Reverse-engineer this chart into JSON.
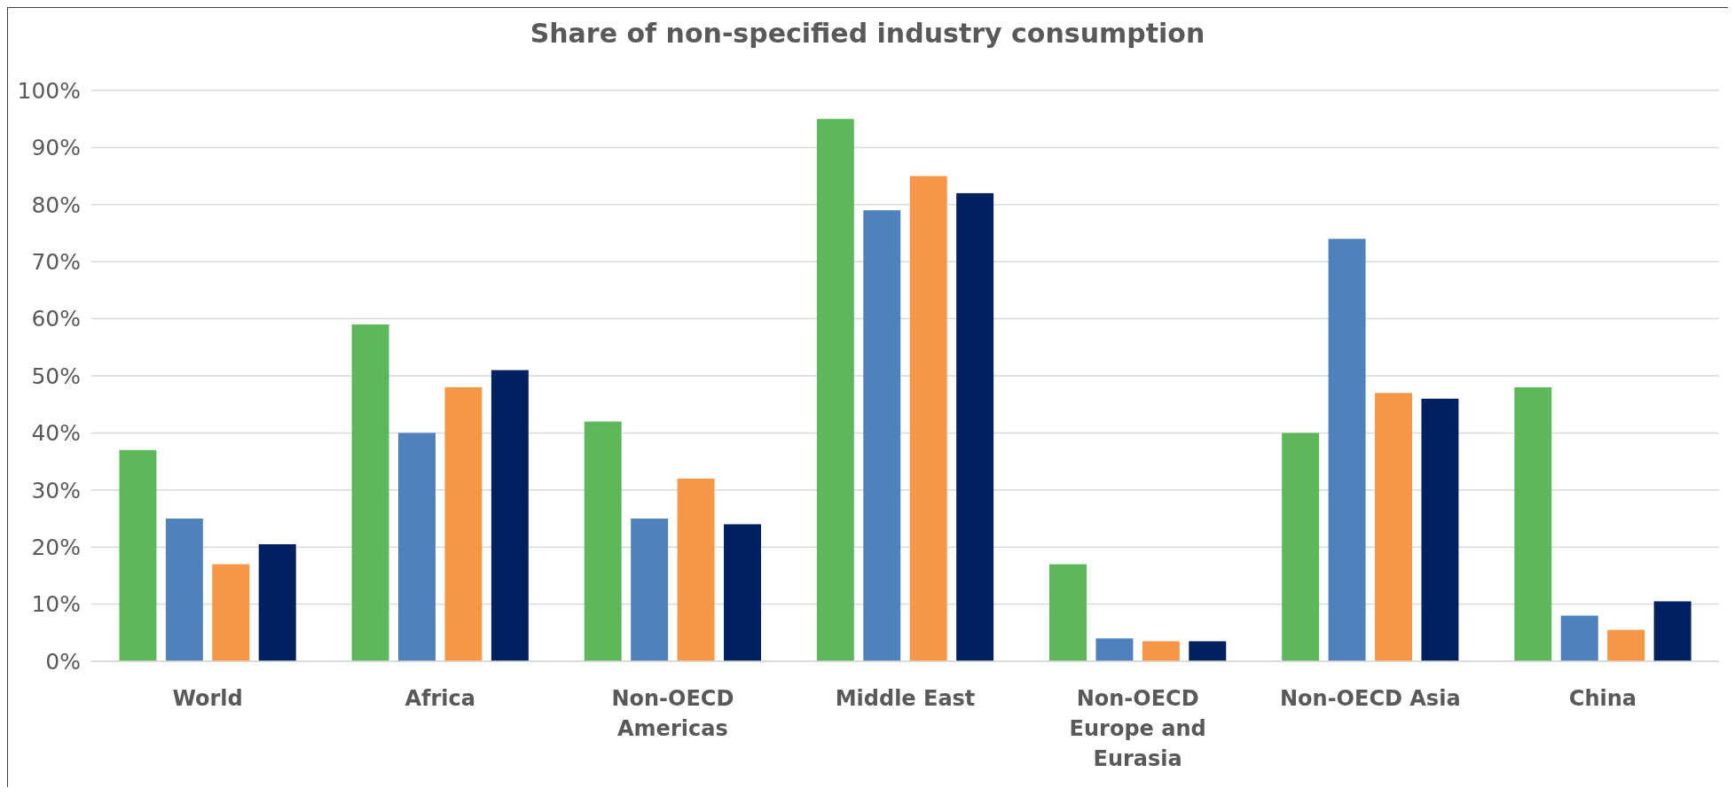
{
  "chart_data": {
    "type": "bar",
    "title": "Share of non-specified industry consumption",
    "categories": [
      "World",
      "Africa",
      "Non-OECD Americas",
      "Middle East",
      "Non-OECD Europe and Eurasia",
      "Non-OECD Asia",
      "China"
    ],
    "series": [
      {
        "color": "#5cb85a",
        "values": [
          37,
          59,
          42,
          95,
          17,
          40,
          48
        ]
      },
      {
        "color": "#4f81bd",
        "values": [
          25,
          40,
          25,
          79,
          4,
          74,
          8
        ]
      },
      {
        "color": "#f79646",
        "values": [
          17,
          48,
          32,
          85,
          3.5,
          47,
          5.5
        ]
      },
      {
        "color": "#002060",
        "values": [
          20.5,
          51,
          24,
          82,
          3.5,
          46,
          10.5
        ]
      }
    ],
    "ylim": [
      0,
      100
    ],
    "yticks": [
      {
        "value": 0,
        "label": "0%"
      },
      {
        "value": 10,
        "label": "10%"
      },
      {
        "value": 20,
        "label": "20%"
      },
      {
        "value": 30,
        "label": "30%"
      },
      {
        "value": 40,
        "label": "40%"
      },
      {
        "value": 50,
        "label": "50%"
      },
      {
        "value": 60,
        "label": "60%"
      },
      {
        "value": 70,
        "label": "70%"
      },
      {
        "value": 80,
        "label": "80%"
      },
      {
        "value": 90,
        "label": "90%"
      },
      {
        "value": 100,
        "label": "100%"
      }
    ],
    "grid": "y"
  }
}
